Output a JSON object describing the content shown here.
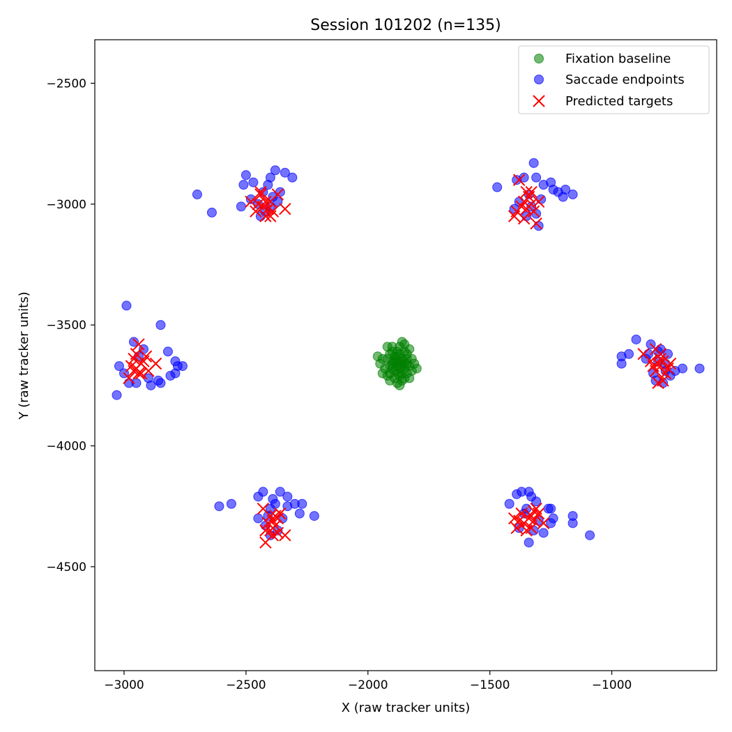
{
  "chart_data": {
    "type": "scatter",
    "title": "Session 101202 (n=135)",
    "xlabel": "X (raw tracker units)",
    "ylabel": "Y (raw tracker units)",
    "xlim": [
      -3120,
      -570
    ],
    "ylim": [
      -4930,
      -2320
    ],
    "y_inverted": true,
    "xticks": [
      -3000,
      -2500,
      -2000,
      -1500,
      -1000
    ],
    "yticks": [
      -2500,
      -3000,
      -3500,
      -4000,
      -4500
    ],
    "grid": false,
    "legend_position": "top-right",
    "series": [
      {
        "name": "Fixation baseline",
        "marker": "circle",
        "color": "#008000",
        "points": [
          [
            -1880,
            -3650
          ],
          [
            -1860,
            -3640
          ],
          [
            -1900,
            -3660
          ],
          [
            -1870,
            -3680
          ],
          [
            -1850,
            -3660
          ],
          [
            -1890,
            -3630
          ],
          [
            -1910,
            -3670
          ],
          [
            -1870,
            -3620
          ],
          [
            -1840,
            -3640
          ],
          [
            -1880,
            -3700
          ],
          [
            -1860,
            -3700
          ],
          [
            -1920,
            -3640
          ],
          [
            -1900,
            -3610
          ],
          [
            -1830,
            -3670
          ],
          [
            -1850,
            -3610
          ],
          [
            -1890,
            -3690
          ],
          [
            -1870,
            -3590
          ],
          [
            -1910,
            -3700
          ],
          [
            -1840,
            -3700
          ],
          [
            -1880,
            -3740
          ],
          [
            -1930,
            -3680
          ],
          [
            -1820,
            -3640
          ],
          [
            -1850,
            -3580
          ],
          [
            -1900,
            -3590
          ],
          [
            -1860,
            -3730
          ],
          [
            -1920,
            -3710
          ],
          [
            -1870,
            -3660
          ],
          [
            -1890,
            -3650
          ],
          [
            -1860,
            -3670
          ],
          [
            -1880,
            -3670
          ],
          [
            -1900,
            -3650
          ],
          [
            -1850,
            -3680
          ],
          [
            -1940,
            -3640
          ],
          [
            -1820,
            -3690
          ],
          [
            -1880,
            -3610
          ],
          [
            -1910,
            -3620
          ],
          [
            -1840,
            -3620
          ],
          [
            -1870,
            -3710
          ],
          [
            -1950,
            -3660
          ],
          [
            -1830,
            -3600
          ],
          [
            -1860,
            -3570
          ],
          [
            -1810,
            -3660
          ],
          [
            -1920,
            -3590
          ],
          [
            -1890,
            -3720
          ],
          [
            -1850,
            -3720
          ],
          [
            -1940,
            -3700
          ],
          [
            -1800,
            -3680
          ],
          [
            -1870,
            -3750
          ],
          [
            -1960,
            -3630
          ],
          [
            -1910,
            -3730
          ],
          [
            -1830,
            -3720
          ],
          [
            -1880,
            -3630
          ],
          [
            -1860,
            -3650
          ],
          [
            -1900,
            -3680
          ],
          [
            -1840,
            -3660
          ]
        ]
      },
      {
        "name": "Saccade endpoints",
        "marker": "circle",
        "color": "#0000ff",
        "points": [
          [
            -2700,
            -2960
          ],
          [
            -2640,
            -3035
          ],
          [
            -2510,
            -2920
          ],
          [
            -2500,
            -2880
          ],
          [
            -2470,
            -2910
          ],
          [
            -2430,
            -2950
          ],
          [
            -2400,
            -2890
          ],
          [
            -2380,
            -2860
          ],
          [
            -2340,
            -2870
          ],
          [
            -2310,
            -2890
          ],
          [
            -2450,
            -3000
          ],
          [
            -2420,
            -3030
          ],
          [
            -2390,
            -2970
          ],
          [
            -2370,
            -2990
          ],
          [
            -2480,
            -2980
          ],
          [
            -2520,
            -3010
          ],
          [
            -2410,
            -2920
          ],
          [
            -2360,
            -2950
          ],
          [
            -2440,
            -3050
          ],
          [
            -2400,
            -3010
          ],
          [
            -1470,
            -2930
          ],
          [
            -1390,
            -2900
          ],
          [
            -1360,
            -2890
          ],
          [
            -1320,
            -2830
          ],
          [
            -1310,
            -2890
          ],
          [
            -1250,
            -2910
          ],
          [
            -1220,
            -2950
          ],
          [
            -1190,
            -2940
          ],
          [
            -1160,
            -2960
          ],
          [
            -1200,
            -2970
          ],
          [
            -1240,
            -2940
          ],
          [
            -1290,
            -2980
          ],
          [
            -1330,
            -3010
          ],
          [
            -1380,
            -2990
          ],
          [
            -1300,
            -3090
          ],
          [
            -1350,
            -3050
          ],
          [
            -1400,
            -3020
          ],
          [
            -1280,
            -2920
          ],
          [
            -1340,
            -2960
          ],
          [
            -1310,
            -3040
          ],
          [
            -2990,
            -3420
          ],
          [
            -2850,
            -3500
          ],
          [
            -2820,
            -3610
          ],
          [
            -2790,
            -3650
          ],
          [
            -2780,
            -3670
          ],
          [
            -2760,
            -3670
          ],
          [
            -2790,
            -3700
          ],
          [
            -2810,
            -3710
          ],
          [
            -2860,
            -3730
          ],
          [
            -2850,
            -3740
          ],
          [
            -2890,
            -3750
          ],
          [
            -2950,
            -3740
          ],
          [
            -2980,
            -3740
          ],
          [
            -3020,
            -3670
          ],
          [
            -3030,
            -3790
          ],
          [
            -2960,
            -3570
          ],
          [
            -2920,
            -3600
          ],
          [
            -2940,
            -3630
          ],
          [
            -3000,
            -3700
          ],
          [
            -2900,
            -3720
          ],
          [
            -900,
            -3560
          ],
          [
            -960,
            -3630
          ],
          [
            -960,
            -3660
          ],
          [
            -930,
            -3620
          ],
          [
            -840,
            -3580
          ],
          [
            -800,
            -3600
          ],
          [
            -770,
            -3620
          ],
          [
            -740,
            -3690
          ],
          [
            -710,
            -3680
          ],
          [
            -640,
            -3680
          ],
          [
            -780,
            -3690
          ],
          [
            -820,
            -3730
          ],
          [
            -860,
            -3640
          ],
          [
            -810,
            -3650
          ],
          [
            -760,
            -3710
          ],
          [
            -790,
            -3740
          ],
          [
            -830,
            -3700
          ],
          [
            -850,
            -3620
          ],
          [
            -780,
            -3660
          ],
          [
            -810,
            -3610
          ],
          [
            -2610,
            -4250
          ],
          [
            -2560,
            -4240
          ],
          [
            -2450,
            -4210
          ],
          [
            -2430,
            -4190
          ],
          [
            -2390,
            -4220
          ],
          [
            -2360,
            -4190
          ],
          [
            -2330,
            -4210
          ],
          [
            -2300,
            -4240
          ],
          [
            -2280,
            -4280
          ],
          [
            -2270,
            -4240
          ],
          [
            -2220,
            -4290
          ],
          [
            -2330,
            -4250
          ],
          [
            -2450,
            -4300
          ],
          [
            -2400,
            -4260
          ],
          [
            -2350,
            -4300
          ],
          [
            -2420,
            -4330
          ],
          [
            -2370,
            -4350
          ],
          [
            -2400,
            -4370
          ],
          [
            -2380,
            -4240
          ],
          [
            -2410,
            -4290
          ],
          [
            -1420,
            -4240
          ],
          [
            -1390,
            -4200
          ],
          [
            -1370,
            -4190
          ],
          [
            -1340,
            -4190
          ],
          [
            -1330,
            -4210
          ],
          [
            -1310,
            -4230
          ],
          [
            -1260,
            -4260
          ],
          [
            -1250,
            -4260
          ],
          [
            -1240,
            -4300
          ],
          [
            -1250,
            -4320
          ],
          [
            -1160,
            -4290
          ],
          [
            -1160,
            -4320
          ],
          [
            -1090,
            -4370
          ],
          [
            -1280,
            -4360
          ],
          [
            -1340,
            -4400
          ],
          [
            -1380,
            -4340
          ],
          [
            -1360,
            -4280
          ],
          [
            -1300,
            -4310
          ],
          [
            -1320,
            -4350
          ],
          [
            -1350,
            -4260
          ]
        ]
      },
      {
        "name": "Predicted targets",
        "marker": "x",
        "color": "#ff0000",
        "points": [
          [
            -2440,
            -2960
          ],
          [
            -2420,
            -2990
          ],
          [
            -2430,
            -3010
          ],
          [
            -2410,
            -3020
          ],
          [
            -2450,
            -3000
          ],
          [
            -2400,
            -2990
          ],
          [
            -2390,
            -3030
          ],
          [
            -2460,
            -3030
          ],
          [
            -2370,
            -2960
          ],
          [
            -2340,
            -3020
          ],
          [
            -2420,
            -3050
          ],
          [
            -2480,
            -2990
          ],
          [
            -2440,
            -2950
          ],
          [
            -2400,
            -3050
          ],
          [
            -1380,
            -2900
          ],
          [
            -1350,
            -2950
          ],
          [
            -1360,
            -2990
          ],
          [
            -1340,
            -2970
          ],
          [
            -1370,
            -3010
          ],
          [
            -1330,
            -3000
          ],
          [
            -1390,
            -3030
          ],
          [
            -1310,
            -3080
          ],
          [
            -1320,
            -3030
          ],
          [
            -1400,
            -3050
          ],
          [
            -1350,
            -3020
          ],
          [
            -1300,
            -2990
          ],
          [
            -1330,
            -2950
          ],
          [
            -1360,
            -3060
          ],
          [
            -2940,
            -3580
          ],
          [
            -2960,
            -3640
          ],
          [
            -2930,
            -3660
          ],
          [
            -2950,
            -3680
          ],
          [
            -2920,
            -3650
          ],
          [
            -2970,
            -3670
          ],
          [
            -2940,
            -3700
          ],
          [
            -2900,
            -3690
          ],
          [
            -2870,
            -3660
          ],
          [
            -2980,
            -3720
          ],
          [
            -2950,
            -3620
          ],
          [
            -2910,
            -3630
          ],
          [
            -2960,
            -3690
          ],
          [
            -2930,
            -3700
          ],
          [
            -820,
            -3600
          ],
          [
            -800,
            -3640
          ],
          [
            -810,
            -3660
          ],
          [
            -790,
            -3650
          ],
          [
            -830,
            -3670
          ],
          [
            -770,
            -3680
          ],
          [
            -780,
            -3700
          ],
          [
            -810,
            -3740
          ],
          [
            -870,
            -3620
          ],
          [
            -790,
            -3730
          ],
          [
            -760,
            -3660
          ],
          [
            -820,
            -3690
          ],
          [
            -800,
            -3620
          ],
          [
            -840,
            -3650
          ],
          [
            -2400,
            -4290
          ],
          [
            -2390,
            -4310
          ],
          [
            -2380,
            -4330
          ],
          [
            -2410,
            -4320
          ],
          [
            -2370,
            -4300
          ],
          [
            -2420,
            -4350
          ],
          [
            -2340,
            -4370
          ],
          [
            -2390,
            -4370
          ],
          [
            -2420,
            -4400
          ],
          [
            -2380,
            -4290
          ],
          [
            -2360,
            -4280
          ],
          [
            -2430,
            -4260
          ],
          [
            -2400,
            -4350
          ],
          [
            -2370,
            -4360
          ],
          [
            -1360,
            -4320
          ],
          [
            -1340,
            -4300
          ],
          [
            -1330,
            -4290
          ],
          [
            -1320,
            -4310
          ],
          [
            -1300,
            -4280
          ],
          [
            -1310,
            -4260
          ],
          [
            -1380,
            -4310
          ],
          [
            -1390,
            -4340
          ],
          [
            -1350,
            -4350
          ],
          [
            -1280,
            -4320
          ],
          [
            -1370,
            -4280
          ],
          [
            -1330,
            -4340
          ],
          [
            -1400,
            -4300
          ],
          [
            -1320,
            -4270
          ]
        ]
      }
    ]
  }
}
